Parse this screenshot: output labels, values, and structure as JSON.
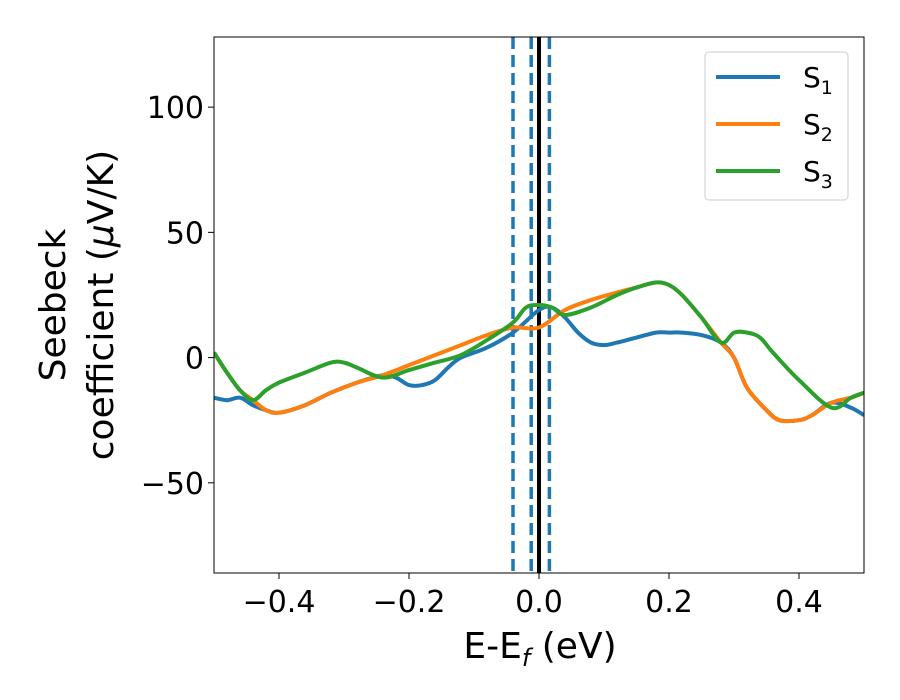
{
  "chart_data": {
    "type": "line",
    "xlabel": "E-E",
    "xlabel_sub": "f",
    "xlabel_unit": " (eV)",
    "ylabel_line1": "Seebeck",
    "ylabel_line2_a": "coefficient  (",
    "ylabel_mu": "μ",
    "ylabel_line2_b": "V/K)",
    "xlim": [
      -0.5,
      0.5
    ],
    "ylim": [
      -86,
      128
    ],
    "xticks": [
      -0.4,
      -0.2,
      0.0,
      0.2,
      0.4
    ],
    "xtick_labels": [
      "−0.4",
      "−0.2",
      "0.0",
      "0.2",
      "0.4"
    ],
    "yticks": [
      -50,
      0,
      50,
      100
    ],
    "ytick_labels": [
      "−50",
      "0",
      "50",
      "100"
    ],
    "grid": false,
    "legend_position": "top-right",
    "vlines": [
      {
        "x": -0.04,
        "style": "dashed",
        "color": "#1f77b4"
      },
      {
        "x": -0.012,
        "style": "dashed",
        "color": "#1f77b4"
      },
      {
        "x": 0.016,
        "style": "dashed",
        "color": "#1f77b4"
      },
      {
        "x": 0.0,
        "style": "solid",
        "color": "#000000"
      }
    ],
    "series": [
      {
        "name": "S",
        "sub": "1",
        "color": "#1f77b4",
        "x": [
          -0.5,
          -0.48,
          -0.46,
          -0.44,
          -0.42,
          -0.4,
          -0.36,
          -0.32,
          -0.28,
          -0.24,
          -0.22,
          -0.2,
          -0.18,
          -0.16,
          -0.14,
          -0.12,
          -0.08,
          -0.04,
          0.0,
          0.02,
          0.04,
          0.06,
          0.08,
          0.1,
          0.12,
          0.15,
          0.18,
          0.2,
          0.22,
          0.25,
          0.28,
          0.3,
          0.32,
          0.35,
          0.37,
          0.4,
          0.42,
          0.45,
          0.48,
          0.5
        ],
        "y": [
          -16,
          -17,
          -16,
          -19,
          -21,
          -22,
          -19,
          -14,
          -10,
          -7,
          -8,
          -11,
          -11,
          -9,
          -4,
          0,
          4,
          10,
          19,
          20,
          16,
          10,
          6,
          5,
          6,
          8,
          10,
          10,
          10,
          9,
          6,
          0,
          -12,
          -21,
          -25,
          -25,
          -23,
          -18,
          -20,
          -23
        ]
      },
      {
        "name": "S",
        "sub": "2",
        "color": "#ff7f0e",
        "x": [
          -0.5,
          -0.48,
          -0.46,
          -0.44,
          -0.42,
          -0.4,
          -0.36,
          -0.32,
          -0.28,
          -0.24,
          -0.2,
          -0.16,
          -0.12,
          -0.08,
          -0.04,
          0.0,
          0.04,
          0.08,
          0.12,
          0.15,
          0.18,
          0.2,
          0.22,
          0.25,
          0.28,
          0.3,
          0.32,
          0.35,
          0.37,
          0.4,
          0.42,
          0.45,
          0.48,
          0.5
        ],
        "y": [
          2,
          -6,
          -13,
          -17,
          -21,
          -22,
          -19,
          -14,
          -10,
          -7,
          -3,
          1,
          5,
          9,
          12,
          12,
          19,
          23,
          26,
          28,
          30,
          29,
          25,
          16,
          6,
          0,
          -12,
          -21,
          -25,
          -25,
          -23,
          -18,
          -16,
          -14
        ]
      },
      {
        "name": "S",
        "sub": "3",
        "color": "#2ca02c",
        "x": [
          -0.5,
          -0.48,
          -0.46,
          -0.44,
          -0.42,
          -0.4,
          -0.36,
          -0.32,
          -0.3,
          -0.28,
          -0.24,
          -0.2,
          -0.16,
          -0.12,
          -0.08,
          -0.04,
          -0.02,
          0.0,
          0.02,
          0.04,
          0.08,
          0.12,
          0.15,
          0.18,
          0.2,
          0.22,
          0.25,
          0.28,
          0.3,
          0.32,
          0.34,
          0.36,
          0.4,
          0.45,
          0.48,
          0.5
        ],
        "y": [
          2,
          -6,
          -13,
          -17,
          -13,
          -10,
          -6,
          -2,
          -2,
          -4,
          -8,
          -5,
          -2,
          1,
          7,
          14,
          20,
          21,
          20,
          17,
          20,
          25,
          28,
          30,
          29,
          25,
          16,
          6,
          10,
          10,
          8,
          2,
          -9,
          -20,
          -16,
          -14
        ]
      }
    ]
  }
}
